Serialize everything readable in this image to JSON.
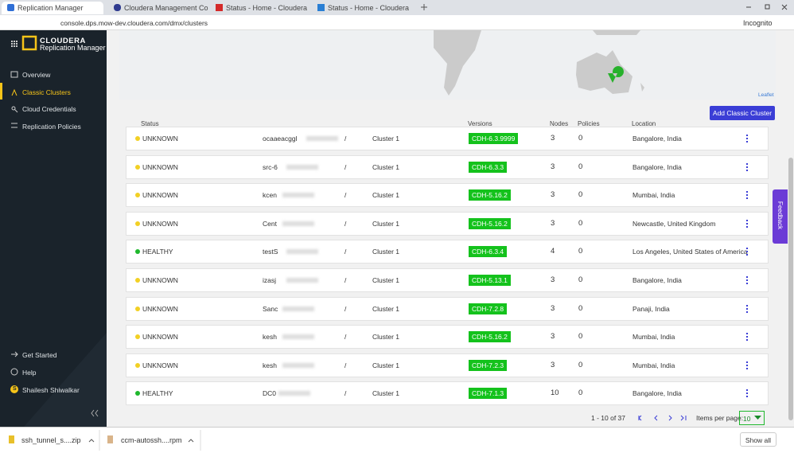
{
  "browser": {
    "tabs": [
      "Replication Manager",
      "Cloudera Management Co",
      "Status - Home - Cloudera",
      "Status - Home - Cloudera"
    ],
    "url": "console.dps.mow-dev.cloudera.com/dmx/clusters",
    "profile": "Incognito"
  },
  "sidebar": {
    "brand": "CLOUDERA",
    "product": "Replication Manager",
    "nav": [
      "Overview",
      "Classic Clusters",
      "Cloud Credentials",
      "Replication Policies"
    ],
    "footer": [
      "Get Started",
      "Help"
    ],
    "user": {
      "initial": "S",
      "name": "Shailesh Shiwalkar"
    }
  },
  "map": {
    "attribution": "Leaflet"
  },
  "toolbar": {
    "button": "Add Classic Cluster"
  },
  "table": {
    "columns": [
      "Status",
      "Versions",
      "Nodes",
      "Policies",
      "Location"
    ],
    "rows": [
      {
        "status": "UNKNOWN",
        "status_color": "#f2d024",
        "name": "ocaaeacggl",
        "separator": "/",
        "cluster": "Cluster 1",
        "version": "CDH-6.3.9999",
        "nodes": 3,
        "policies": 0,
        "location": "Bangalore, India"
      },
      {
        "status": "UNKNOWN",
        "status_color": "#f2d024",
        "name": "src-6",
        "separator": "/",
        "cluster": "Cluster 1",
        "version": "CDH-6.3.3",
        "nodes": 3,
        "policies": 0,
        "location": "Bangalore, India"
      },
      {
        "status": "UNKNOWN",
        "status_color": "#f2d024",
        "name": "kcen",
        "separator": "/",
        "cluster": "Cluster 1",
        "version": "CDH-5.16.2",
        "nodes": 3,
        "policies": 0,
        "location": "Mumbai, India"
      },
      {
        "status": "UNKNOWN",
        "status_color": "#f2d024",
        "name": "Cent",
        "separator": "/",
        "cluster": "Cluster 1",
        "version": "CDH-5.16.2",
        "nodes": 3,
        "policies": 0,
        "location": "Newcastle, United Kingdom"
      },
      {
        "status": "HEALTHY",
        "status_color": "#1fb82d",
        "name": "testS",
        "separator": "/",
        "cluster": "Cluster 1",
        "version": "CDH-6.3.4",
        "nodes": 4,
        "policies": 0,
        "location": "Los Angeles, United States of America"
      },
      {
        "status": "UNKNOWN",
        "status_color": "#f2d024",
        "name": "izasj",
        "separator": "/",
        "cluster": "Cluster 1",
        "version": "CDH-5.13.1",
        "nodes": 3,
        "policies": 0,
        "location": "Bangalore, India"
      },
      {
        "status": "UNKNOWN",
        "status_color": "#f2d024",
        "name": "Sanc",
        "separator": "/",
        "cluster": "Cluster 1",
        "version": "CDH-7.2.8",
        "nodes": 3,
        "policies": 0,
        "location": "Panaji, India"
      },
      {
        "status": "UNKNOWN",
        "status_color": "#f2d024",
        "name": "kesh",
        "separator": "/",
        "cluster": "Cluster 1",
        "version": "CDH-5.16.2",
        "nodes": 3,
        "policies": 0,
        "location": "Mumbai, India"
      },
      {
        "status": "UNKNOWN",
        "status_color": "#f2d024",
        "name": "kesh",
        "separator": "/",
        "cluster": "Cluster 1",
        "version": "CDH-7.2.3",
        "nodes": 3,
        "policies": 0,
        "location": "Mumbai, India"
      },
      {
        "status": "HEALTHY",
        "status_color": "#1fb82d",
        "name": "DC0",
        "separator": "/",
        "cluster": "Cluster 1",
        "version": "CDH-7.1.3",
        "nodes": 10,
        "policies": 0,
        "location": "Bangalore, India"
      }
    ]
  },
  "pagination": {
    "range": "1 - 10 of 37",
    "items_per_page_label": "Items per page:",
    "items_per_page": "10"
  },
  "feedback": "Feedback",
  "downloads": {
    "files": [
      "ssh_tunnel_s....zip",
      "ccm-autossh....rpm"
    ],
    "show_all": "Show all"
  }
}
